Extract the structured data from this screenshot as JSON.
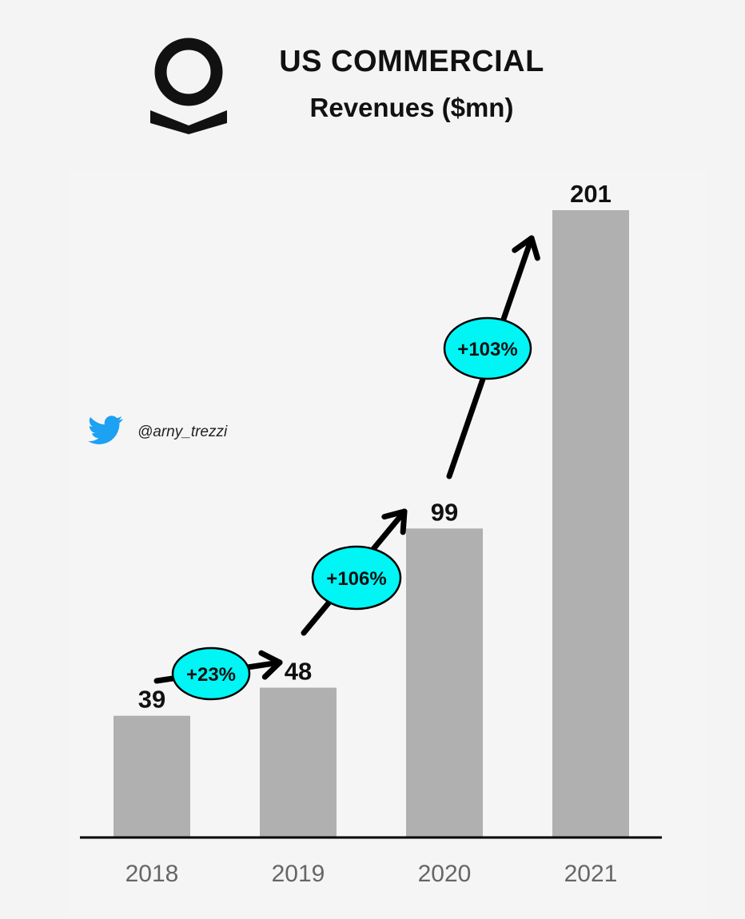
{
  "header": {
    "title": "US COMMERCIAL",
    "subtitle": "Revenues ($mn)"
  },
  "watermark": {
    "handle": "@arny_trezzi",
    "icon": "twitter-bird-icon",
    "icon_color": "#1da1f2"
  },
  "logo": {
    "icon": "palantir-logo",
    "color": "#111111"
  },
  "colors": {
    "bar": "#b0b0b0",
    "badge": "#00f5f5",
    "arrow": "#000000",
    "baseline": "#000000"
  },
  "chart_data": {
    "type": "bar",
    "title": "US COMMERCIAL",
    "subtitle": "Revenues ($mn)",
    "categories": [
      "2018",
      "2019",
      "2020",
      "2021"
    ],
    "values": [
      39,
      48,
      99,
      201
    ],
    "value_labels": [
      "39",
      "48",
      "99",
      "201"
    ],
    "ylim": [
      0,
      201
    ],
    "grid": false,
    "legend": "none",
    "annotations": [
      {
        "from": "2018",
        "to": "2019",
        "label": "+23%"
      },
      {
        "from": "2019",
        "to": "2020",
        "label": "+106%"
      },
      {
        "from": "2020",
        "to": "2021",
        "label": "+103%"
      }
    ]
  }
}
